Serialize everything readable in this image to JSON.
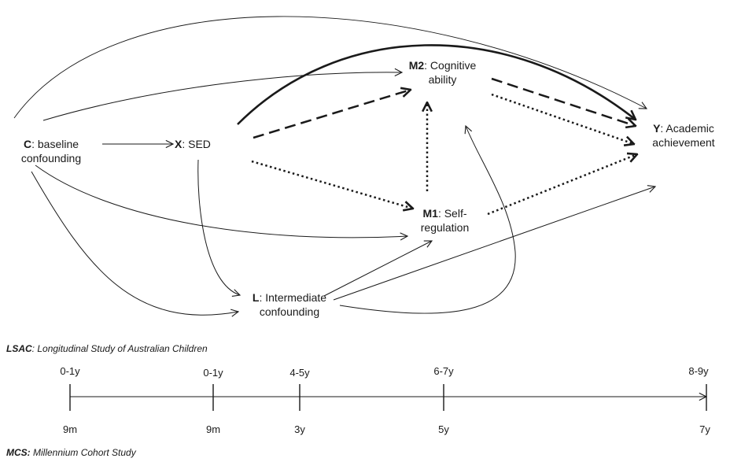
{
  "nodes": {
    "c": {
      "bold": "C",
      "rest": ": baseline",
      "line2": "confounding"
    },
    "x": {
      "bold": "X",
      "rest": ": SED"
    },
    "m2": {
      "bold": "M2",
      "rest": ": Cognitive",
      "line2": "ability"
    },
    "m1": {
      "bold": "M1",
      "rest": ": Self-",
      "line2": "regulation"
    },
    "l": {
      "bold": "L",
      "rest": ": Intermediate",
      "line2": "confounding"
    },
    "y": {
      "bold": "Y",
      "rest": ": Academic",
      "line2": "achievement"
    }
  },
  "lsac": {
    "bold": "LSAC",
    "rest": ": Longitudinal Study of Australian Children"
  },
  "mcs": {
    "bold": "MCS:",
    "rest": " Millennium Cohort Study"
  },
  "timeline": {
    "top": [
      "0-1y",
      "0-1y",
      "4-5y",
      "6-7y",
      "8-9y"
    ],
    "bottom": [
      "9m",
      "9m",
      "3y",
      "5y",
      "7y"
    ]
  }
}
